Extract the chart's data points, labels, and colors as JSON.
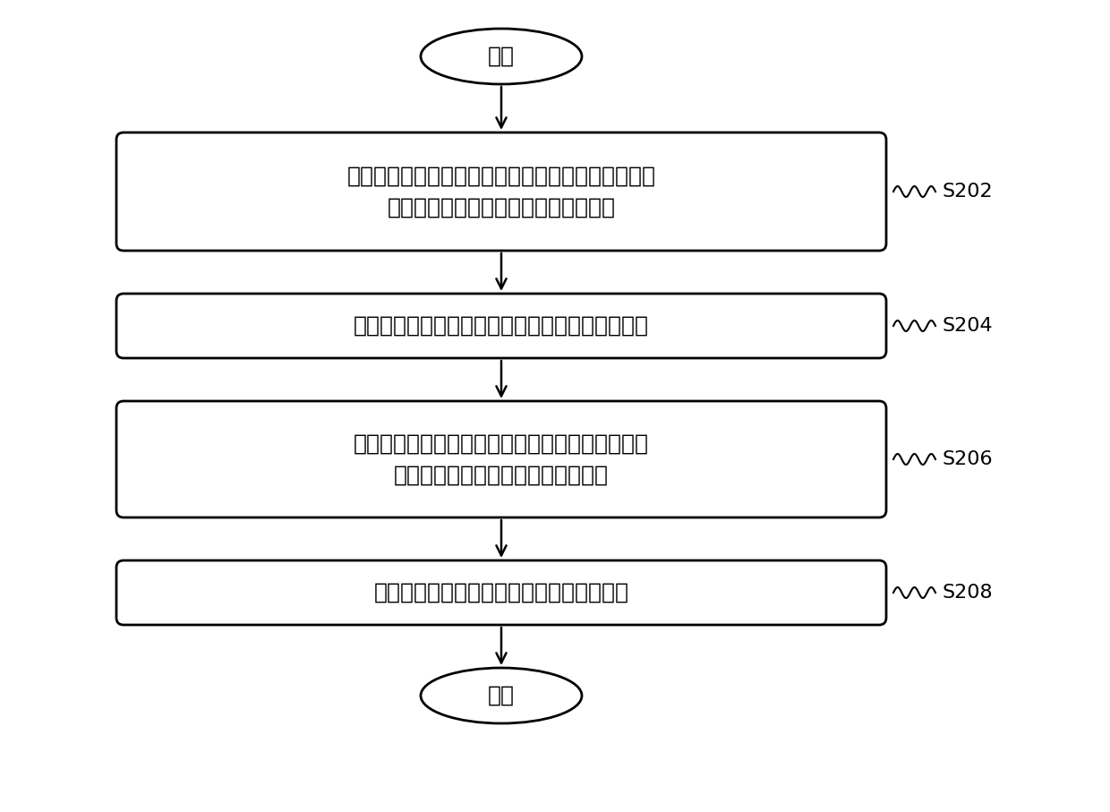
{
  "bg_color": "#ffffff",
  "box_color": "#ffffff",
  "box_edge_color": "#000000",
  "text_color": "#000000",
  "arrow_color": "#000000",
  "start_end_label": [
    "开始",
    "结束"
  ],
  "step_labels": [
    "接收预设运行时间内的预设总用电量和预设运行时间\n内的每一时间段对应的分配用电量比例",
    "在任一时间段结束时，统计时间段的实际用电分量",
    "根据预设总用电量、实际用电分量和分配用电量比\n例，计算当前时间段的目标运行功率",
    "根据目标运行功率控制当前时间段内的运行"
  ],
  "step_ids": [
    "S202",
    "S204",
    "S206",
    "S208"
  ],
  "font_size_step": 18,
  "font_size_label": 18,
  "font_size_id": 16
}
